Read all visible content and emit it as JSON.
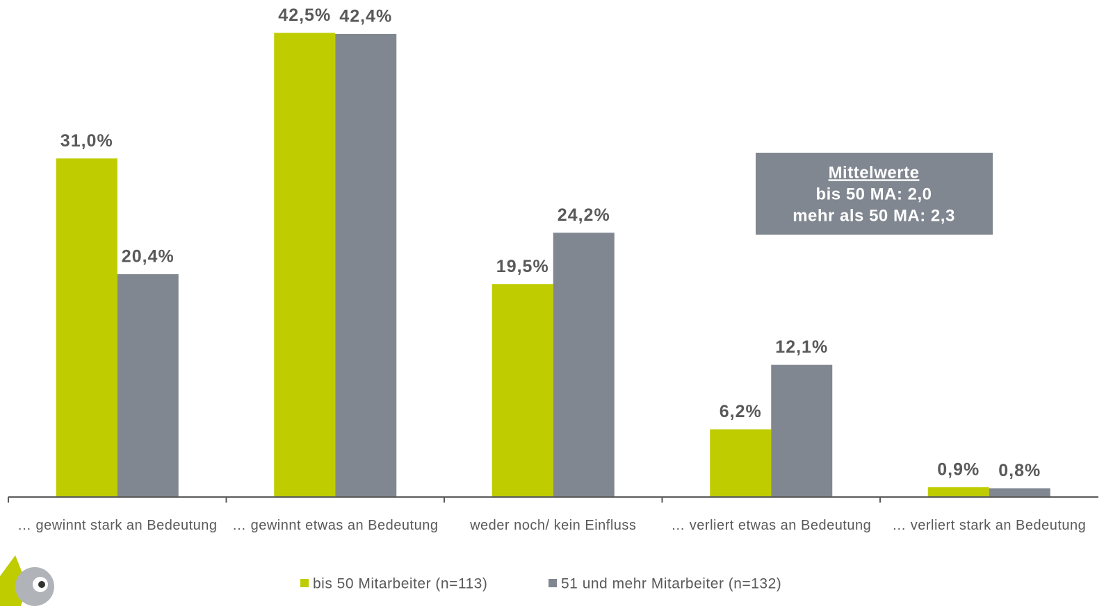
{
  "chart_data": {
    "type": "bar",
    "categories": [
      "… gewinnt stark an Bedeutung",
      "… gewinnt etwas an Bedeutung",
      "weder noch/ kein Einfluss",
      "… verliert etwas an Bedeutung",
      "… verliert stark an Bedeutung"
    ],
    "series": [
      {
        "name": "bis 50 Mitarbeiter (n=113)",
        "color": "#bfcc00",
        "values": [
          31.0,
          42.5,
          19.5,
          6.2,
          0.9
        ],
        "value_labels": [
          "31,0%",
          "42,5%",
          "19,5%",
          "6,2%",
          "0,9%"
        ]
      },
      {
        "name": "51 und mehr Mitarbeiter (n=132)",
        "color": "#808790",
        "values": [
          20.4,
          42.4,
          24.2,
          12.1,
          0.8
        ],
        "value_labels": [
          "20,4%",
          "42,4%",
          "24,2%",
          "12,1%",
          "0,8%"
        ]
      }
    ],
    "ylim": [
      0,
      45
    ],
    "annotations": [
      "Mittelwerte",
      "bis 50 MA: 2,0",
      "mehr als 50 MA: 2,3"
    ]
  }
}
